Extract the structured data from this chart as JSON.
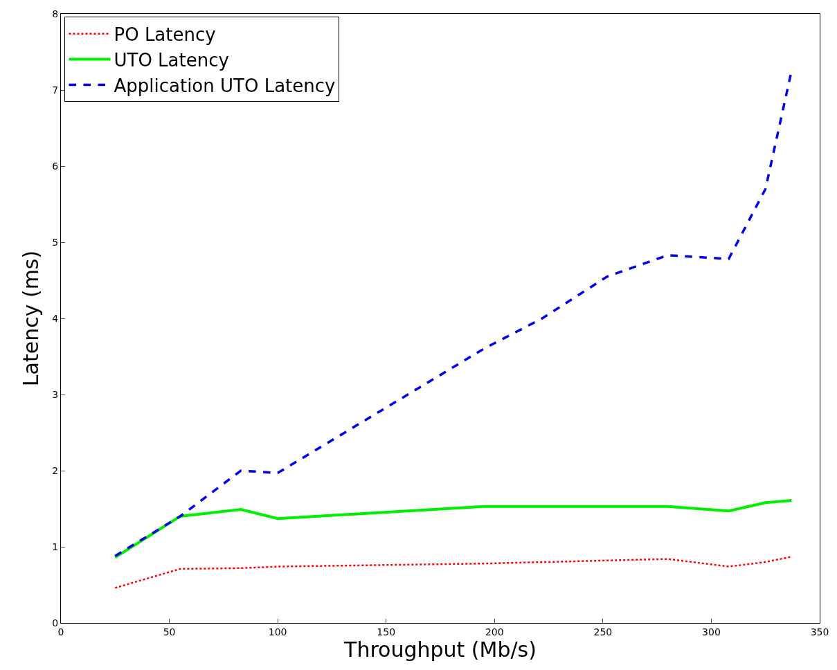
{
  "chart_data": {
    "type": "line",
    "xlabel": "Throughput (Mb/s)",
    "ylabel": "Latency (ms)",
    "xlim": [
      0,
      350
    ],
    "xticks": [
      0,
      50,
      100,
      150,
      200,
      250,
      300,
      350
    ],
    "ylim": [
      0,
      8
    ],
    "yticks": [
      0,
      1,
      2,
      3,
      4,
      5,
      6,
      7,
      8
    ],
    "legend": "top left",
    "marker": "none",
    "series": [
      {
        "name": "PO Latency",
        "color": "#ff0000",
        "line_style": "dotted",
        "x": [
          25,
          55,
          83,
          100,
          195,
          280,
          308,
          325,
          337
        ],
        "values": [
          0.46,
          0.71,
          0.72,
          0.74,
          0.78,
          0.84,
          0.74,
          0.8,
          0.87
        ]
      },
      {
        "name": "UTO Latency",
        "color": "#00ee00",
        "line_style": "solid",
        "x": [
          25,
          55,
          83,
          100,
          195,
          280,
          308,
          325,
          337
        ],
        "values": [
          0.86,
          1.4,
          1.49,
          1.37,
          1.53,
          1.53,
          1.47,
          1.58,
          1.61
        ]
      },
      {
        "name": "Application UTO Latency",
        "color": "#0000ee",
        "line_style": "dashed",
        "x": [
          25,
          55,
          83,
          100,
          195,
          222,
          252,
          280,
          308,
          325,
          337
        ],
        "values": [
          0.88,
          1.4,
          2.0,
          1.97,
          3.6,
          4.0,
          4.55,
          4.83,
          4.78,
          5.7,
          7.25
        ]
      }
    ]
  }
}
